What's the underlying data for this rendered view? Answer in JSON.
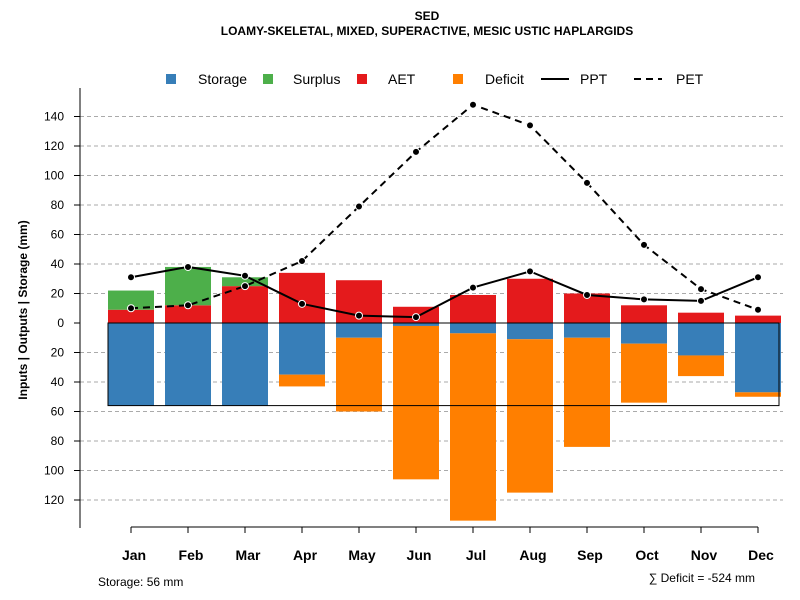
{
  "chart_data": {
    "type": "bar",
    "title": "SED",
    "subtitle": "LOAMY-SKELETAL, MIXED, SUPERACTIVE, MESIC USTIC HAPLARGIDS",
    "ylabel": "Inputs | Outputs | Storage    (mm)",
    "ylim": [
      -140,
      150
    ],
    "yticks": [
      140,
      120,
      100,
      80,
      60,
      40,
      20,
      0,
      -20,
      -40,
      -60,
      -80,
      -100,
      -120
    ],
    "ytick_labels": [
      "140",
      "120",
      "100",
      "80",
      "60",
      "40",
      "20",
      "0",
      "20",
      "40",
      "60",
      "80",
      "100",
      "120"
    ],
    "categories": [
      "Jan",
      "Feb",
      "Mar",
      "Apr",
      "May",
      "Jun",
      "Jul",
      "Aug",
      "Sep",
      "Oct",
      "Nov",
      "Dec"
    ],
    "legend": {
      "placement": "top",
      "entries": [
        {
          "label": "Storage",
          "kind": "box",
          "color": "#377EB8"
        },
        {
          "label": "Surplus",
          "kind": "box",
          "color": "#4DAF4A"
        },
        {
          "label": "AET",
          "kind": "box",
          "color": "#E41A1C"
        },
        {
          "label": "Deficit",
          "kind": "box",
          "color": "#FF7F00"
        },
        {
          "label": "PPT",
          "kind": "solid-line",
          "color": "#000000"
        },
        {
          "label": "PET",
          "kind": "dashed-line",
          "color": "#000000"
        }
      ]
    },
    "colors": {
      "storage": "#377EB8",
      "surplus": "#4DAF4A",
      "aet": "#E41A1C",
      "deficit": "#FF7F00",
      "grid": "#AAAAAA"
    },
    "series": [
      {
        "name": "AET",
        "values": [
          9,
          12,
          25,
          34,
          29,
          11,
          19,
          30,
          20,
          12,
          7,
          5
        ]
      },
      {
        "name": "Surplus",
        "values": [
          13,
          26,
          6,
          0,
          0,
          0,
          0,
          0,
          0,
          0,
          0,
          0
        ]
      },
      {
        "name": "Storage",
        "values": [
          -56,
          -56,
          -56,
          -35,
          -10,
          -2,
          -7,
          -11,
          -10,
          -14,
          -22,
          -47
        ]
      },
      {
        "name": "Deficit",
        "values": [
          0,
          0,
          0,
          -8,
          -50,
          -104,
          -127,
          -104,
          -74,
          -40,
          -14,
          -3
        ]
      },
      {
        "name": "PPT",
        "values": [
          31,
          38,
          32,
          13,
          5,
          4,
          24,
          35,
          19,
          16,
          15,
          31
        ]
      },
      {
        "name": "PET",
        "values": [
          10,
          12,
          25,
          42,
          79,
          116,
          148,
          134,
          95,
          53,
          23,
          9
        ]
      }
    ],
    "storage_capacity": -56,
    "grid": "horizontal-dashed"
  },
  "footer": {
    "storage_note": "Storage: 56 mm",
    "deficit_note": "∑ Deficit = -524 mm"
  }
}
